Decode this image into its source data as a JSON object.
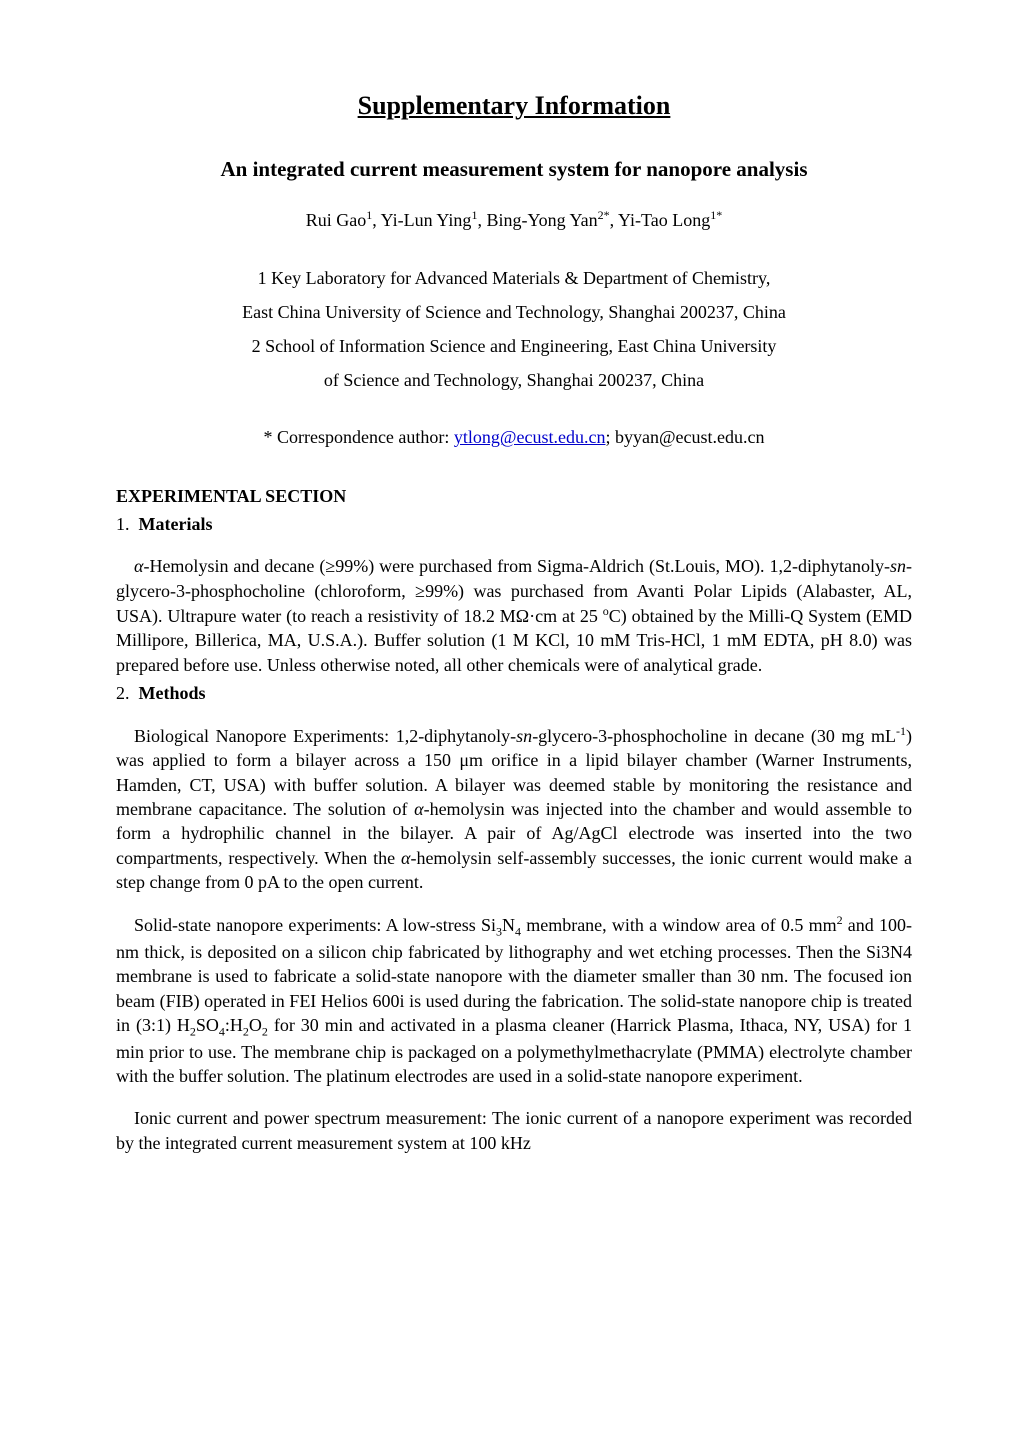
{
  "main_title": "Supplementary Information",
  "sub_title": "An integrated current measurement system for nanopore analysis",
  "authors": {
    "a1_name": "Rui Gao",
    "a1_sup": "1",
    "a2_name": ", Yi-Lun Ying",
    "a2_sup": "1",
    "a3_name": ", Bing-Yong Yan",
    "a3_sup": "2*",
    "a4_name": ", Yi-Tao Long",
    "a4_sup": "1*"
  },
  "affiliations": {
    "line1": "1 Key Laboratory for Advanced Materials & Department of Chemistry,",
    "line2": "East China University of Science and Technology, Shanghai 200237, China",
    "line3": "2 School of Information Science and Engineering, East China University",
    "line4": "of Science and Technology, Shanghai 200237, China"
  },
  "correspondence": {
    "prefix": "* Correspondence author: ",
    "email1": "ytlong@ecust.edu.cn",
    "separator": "; ",
    "email2": "byyan@ecust.edu.cn"
  },
  "section_heading": "EXPERIMENTAL SECTION",
  "subsection1": {
    "number": "1.",
    "title": "Materials"
  },
  "para1": {
    "t1_italic": "α",
    "t2": "-Hemolysin and decane (≥99%) were purchased from Sigma-Aldrich (St.Louis, MO). 1,2-diphytanoly-",
    "t3_italic": "sn",
    "t4": "-glycero-3-phosphocholine (chloroform, ≥99%) was purchased from Avanti Polar Lipids (Alabaster, AL, USA). Ultrapure water (to reach a resistivity of 18.2 MΩ·cm at 25 ",
    "t5_sup": "o",
    "t6": "C) obtained by the Milli-Q System (EMD Millipore, Billerica, MA, U.S.A.). Buffer solution (1 M KCl, 10 mM Tris-HCl, 1 mM EDTA, pH 8.0) was prepared before use. Unless otherwise noted, all other chemicals were of analytical grade."
  },
  "subsection2": {
    "number": "2.",
    "title": "Methods"
  },
  "para2": {
    "t1": "Biological Nanopore Experiments: 1,2-diphytanoly-",
    "t2_italic": "sn",
    "t3": "-glycero-3-phosphocholine in decane (30 mg mL",
    "t4_sup": "-1",
    "t5": ") was applied to form a bilayer across a 150 μm orifice in a lipid bilayer chamber (Warner Instruments, Hamden, CT, USA) with buffer solution. A bilayer was deemed stable by monitoring the resistance and membrane capacitance. The solution of ",
    "t6_italic": "α",
    "t7": "-hemolysin was injected into the chamber and would assemble to form a hydrophilic channel in the bilayer. A pair of Ag/AgCl electrode was inserted into the two compartments, respectively. When the ",
    "t8_italic": "α",
    "t9": "-hemolysin self-assembly successes, the ionic current would make a step change from 0 pA to the open current."
  },
  "para3": {
    "t1": "Solid-state nanopore experiments: A low-stress Si",
    "t2_sub": "3",
    "t3": "N",
    "t4_sub": "4",
    "t5": " membrane, with a window area of 0.5 mm",
    "t6_sup": "2",
    "t7": " and 100-nm thick, is deposited on a silicon chip fabricated by lithography and wet etching processes. Then the Si3N4 membrane is used to fabricate a solid-state nanopore with the diameter smaller than 30 nm. The focused ion beam (FIB) operated in FEI Helios 600i is used during the fabrication. The solid-state nanopore chip is treated in (3:1) H",
    "t8_sub": "2",
    "t9": "SO",
    "t10_sub": "4",
    "t11": ":H",
    "t12_sub": "2",
    "t13": "O",
    "t14_sub": "2",
    "t15": " for 30 min and activated in a plasma cleaner (Harrick Plasma, Ithaca, NY, USA) for 1 min prior to use. The membrane chip is packaged on a polymethylmethacrylate (PMMA) electrolyte chamber with the buffer solution. The platinum electrodes are used in a solid-state nanopore experiment."
  },
  "para4": {
    "t1": "Ionic current and power spectrum measurement: The ionic current of a nanopore experiment was recorded by the integrated current measurement system at 100 kHz"
  }
}
